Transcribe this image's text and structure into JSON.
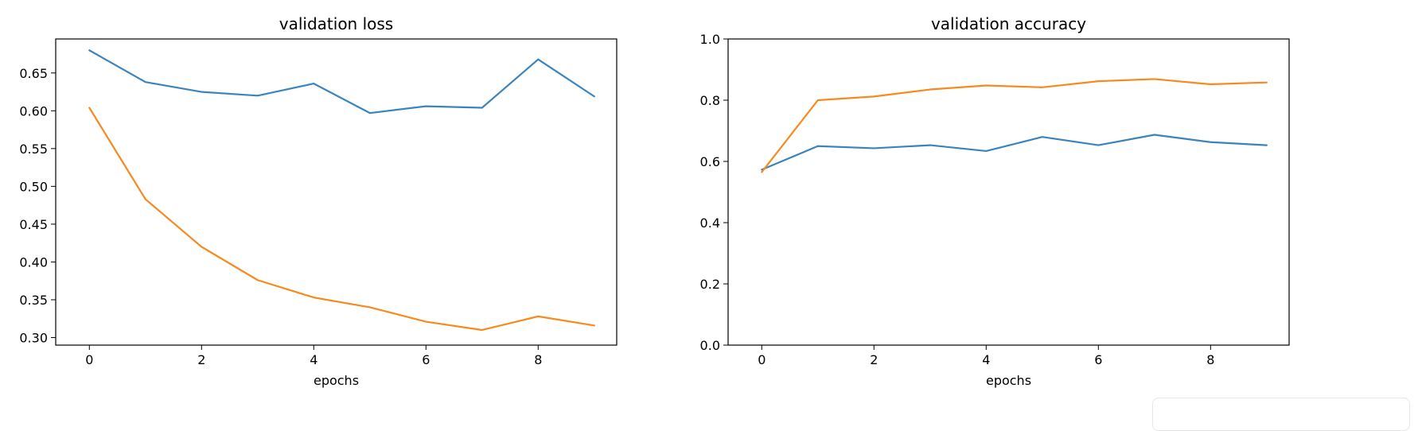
{
  "colors": {
    "blue": "#3a84be",
    "orange": "#f78a1e"
  },
  "chart_data": [
    {
      "type": "line",
      "title": "validation loss",
      "xlabel": "epochs",
      "ylabel": "",
      "x": [
        0,
        1,
        2,
        3,
        4,
        5,
        6,
        7,
        8,
        9
      ],
      "xlim": [
        -0.6,
        9.4
      ],
      "ylim": [
        0.29,
        0.695
      ],
      "xticks": [
        0,
        2,
        4,
        6,
        8
      ],
      "xtick_labels": [
        "0",
        "2",
        "4",
        "6",
        "8"
      ],
      "yticks": [
        0.3,
        0.35,
        0.4,
        0.45,
        0.5,
        0.55,
        0.6,
        0.65
      ],
      "ytick_labels": [
        "0.30",
        "0.35",
        "0.40",
        "0.45",
        "0.50",
        "0.55",
        "0.60",
        "0.65"
      ],
      "grid": false,
      "series": [
        {
          "color": "#3a84be",
          "values": [
            0.68,
            0.638,
            0.625,
            0.62,
            0.636,
            0.597,
            0.606,
            0.604,
            0.668,
            0.619
          ]
        },
        {
          "color": "#f78a1e",
          "values": [
            0.604,
            0.483,
            0.42,
            0.376,
            0.353,
            0.34,
            0.321,
            0.31,
            0.328,
            0.316
          ]
        }
      ]
    },
    {
      "type": "line",
      "title": "validation accuracy",
      "xlabel": "epochs",
      "ylabel": "",
      "x": [
        0,
        1,
        2,
        3,
        4,
        5,
        6,
        7,
        8,
        9
      ],
      "xlim": [
        -0.6,
        9.4
      ],
      "ylim": [
        0.0,
        1.0
      ],
      "xticks": [
        0,
        2,
        4,
        6,
        8
      ],
      "xtick_labels": [
        "0",
        "2",
        "4",
        "6",
        "8"
      ],
      "yticks": [
        0.0,
        0.2,
        0.4,
        0.6,
        0.8,
        1.0
      ],
      "ytick_labels": [
        "0.0",
        "0.2",
        "0.4",
        "0.6",
        "0.8",
        "1.0"
      ],
      "grid": false,
      "series": [
        {
          "color": "#3a84be",
          "values": [
            0.573,
            0.65,
            0.643,
            0.653,
            0.634,
            0.68,
            0.653,
            0.687,
            0.663,
            0.653
          ]
        },
        {
          "color": "#f78a1e",
          "values": [
            0.565,
            0.8,
            0.812,
            0.835,
            0.848,
            0.842,
            0.862,
            0.869,
            0.852,
            0.858
          ]
        }
      ]
    }
  ]
}
